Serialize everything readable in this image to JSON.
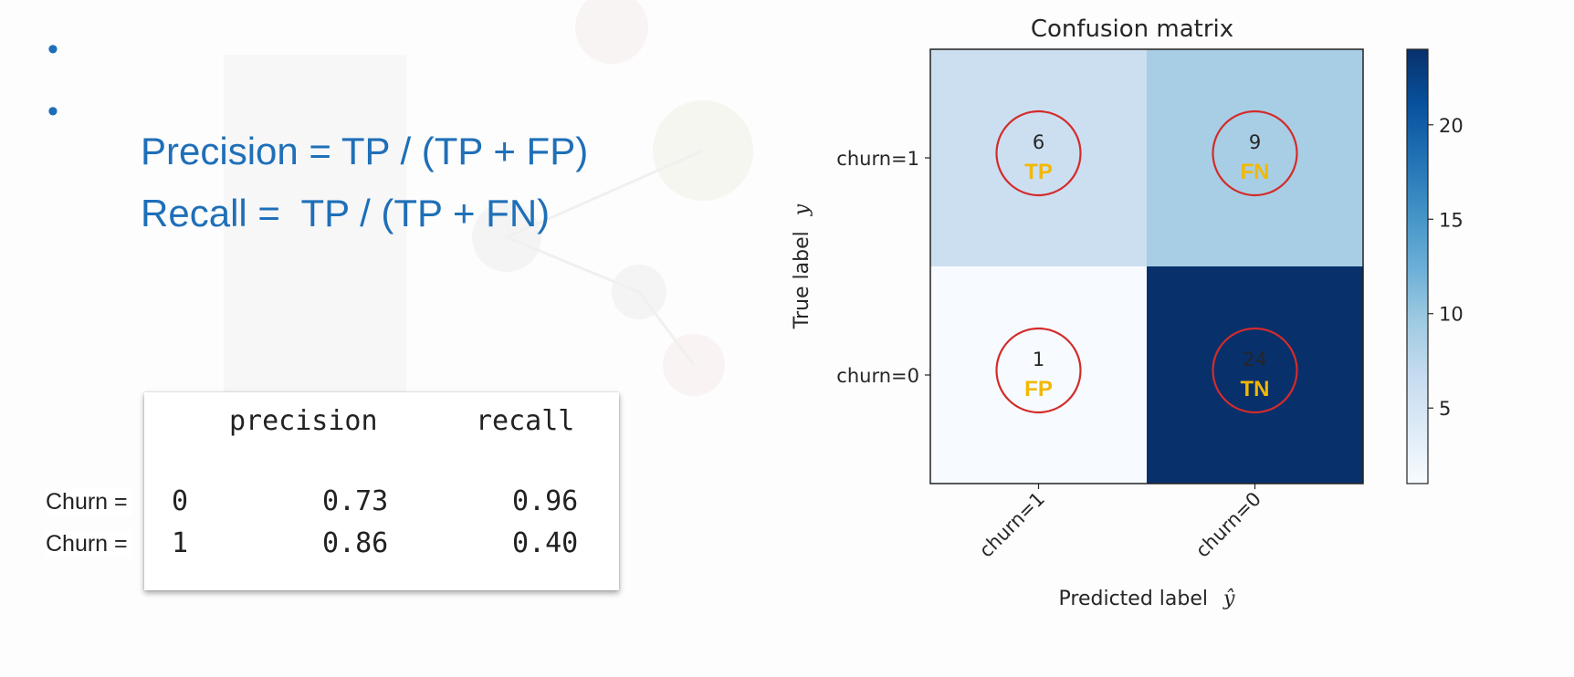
{
  "slide": {
    "bullets": [
      "Precision = TP / (TP + FP)",
      "Recall =  TP / (TP + FN)"
    ],
    "bullet_symbol": "•",
    "colors": {
      "bullet_text": "#1f6fb8",
      "quadrant_tag": "#f2b800",
      "highlight_circle": "#d42b2b"
    }
  },
  "report": {
    "headers": [
      "precision",
      "recall"
    ],
    "row_prefix": "Churn =",
    "rows": [
      {
        "class": "0",
        "precision": "0.73",
        "recall": "0.96"
      },
      {
        "class": "1",
        "precision": "0.86",
        "recall": "0.40"
      }
    ]
  },
  "chart_data": {
    "type": "heatmap",
    "title": "Confusion matrix",
    "xlabel": "Predicted label",
    "xlabel_symbol": "ŷ",
    "ylabel": "True label",
    "ylabel_symbol": "y",
    "x_categories": [
      "churn=1",
      "churn=0"
    ],
    "y_categories": [
      "churn=1",
      "churn=0"
    ],
    "values": [
      [
        6,
        9
      ],
      [
        1,
        24
      ]
    ],
    "cell_tags": [
      [
        "TP",
        "FN"
      ],
      [
        "FP",
        "TN"
      ]
    ],
    "colormap": "Blues",
    "colorbar": {
      "ticks": [
        5,
        10,
        15,
        20
      ],
      "range": [
        1,
        24
      ]
    }
  }
}
